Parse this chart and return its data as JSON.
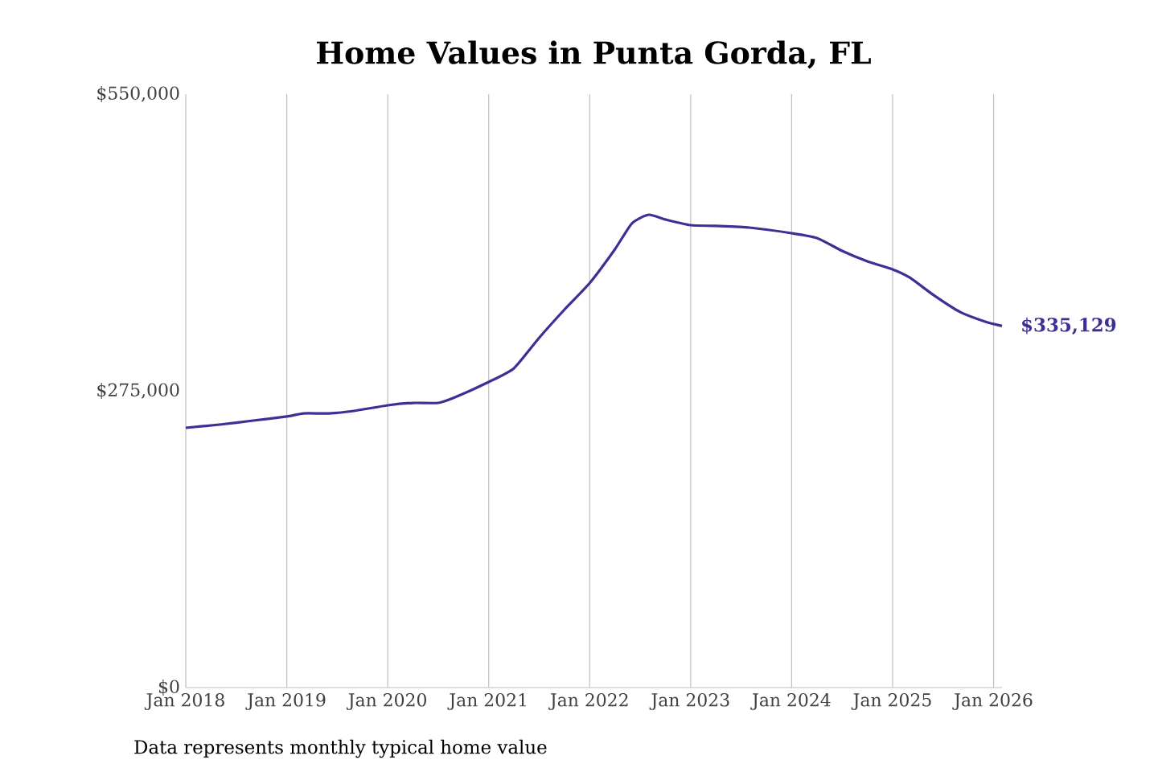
{
  "chart_data": {
    "type": "line",
    "title": "Home Values in Punta Gorda, FL",
    "x": [
      "2018-01",
      "2018-05",
      "2018-09",
      "2019-01",
      "2019-03",
      "2019-06",
      "2019-09",
      "2020-01",
      "2020-04",
      "2020-07",
      "2020-09",
      "2021-01",
      "2021-04",
      "2021-07",
      "2021-10",
      "2022-01",
      "2022-04",
      "2022-06",
      "2022-08",
      "2022-10",
      "2023-01",
      "2023-04",
      "2023-08",
      "2024-01",
      "2024-04",
      "2024-07",
      "2024-10",
      "2025-01",
      "2025-03",
      "2025-06",
      "2025-09",
      "2025-12",
      "2026-02"
    ],
    "series": [
      {
        "color": "#3a3096",
        "values": [
          240700,
          243700,
          247400,
          251200,
          254100,
          254100,
          256400,
          261600,
          263800,
          263800,
          269000,
          283200,
          295900,
          324200,
          350300,
          374900,
          406200,
          430000,
          438200,
          433800,
          428500,
          427800,
          426300,
          421100,
          416600,
          404700,
          395000,
          387600,
          380100,
          363000,
          348100,
          339100,
          335129
        ]
      }
    ],
    "xticks": [
      {
        "value": "2018-01",
        "label": "Jan 2018"
      },
      {
        "value": "2019-01",
        "label": "Jan 2019"
      },
      {
        "value": "2020-01",
        "label": "Jan 2020"
      },
      {
        "value": "2021-01",
        "label": "Jan 2021"
      },
      {
        "value": "2022-01",
        "label": "Jan 2022"
      },
      {
        "value": "2023-01",
        "label": "Jan 2023"
      },
      {
        "value": "2024-01",
        "label": "Jan 2024"
      },
      {
        "value": "2025-01",
        "label": "Jan 2025"
      },
      {
        "value": "2026-01",
        "label": "Jan 2026"
      }
    ],
    "ylim": [
      0,
      550000
    ],
    "yticks": [
      {
        "value": 0,
        "label": "$0"
      },
      {
        "value": 275000,
        "label": "$275,000"
      },
      {
        "value": 550000,
        "label": "$550,000"
      }
    ],
    "xlim": [
      "2018-01",
      "2026-02"
    ],
    "grid": "x",
    "marker": "none",
    "line_style": "solid",
    "annotations": [
      {
        "text": "$335,129",
        "x": "2026-02",
        "y": 335129
      },
      "Data represents monthly typical home value"
    ]
  }
}
